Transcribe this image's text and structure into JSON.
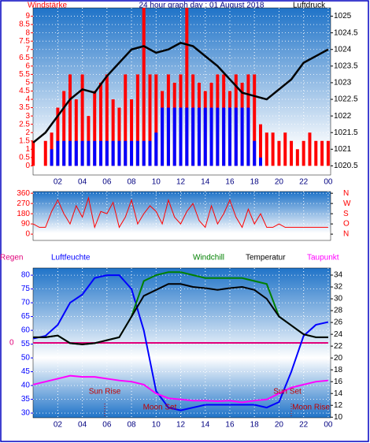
{
  "chart_data": [
    {
      "type": "wind",
      "title": "24 hour graph day : 01 August 2018",
      "ylabel": "Windstärke",
      "y2label": "Luftdruck",
      "x": [
        0,
        0.5,
        1,
        1.5,
        2,
        2.5,
        3,
        3.5,
        4,
        4.5,
        5,
        5.5,
        6,
        6.5,
        7,
        7.5,
        8,
        8.5,
        9,
        9.5,
        10,
        10.5,
        11,
        11.5,
        12,
        12.5,
        13,
        13.5,
        14,
        14.5,
        15,
        15.5,
        16,
        16.5,
        17,
        17.5,
        18,
        18.5,
        19,
        19.5,
        20,
        20.5,
        21,
        21.5,
        22,
        22.5,
        23,
        23.5,
        24
      ],
      "xlim": [
        -2.7,
        24.2
      ],
      "xticks": [
        {
          "value": 2,
          "label": "02"
        },
        {
          "value": 4,
          "label": "04"
        },
        {
          "value": 6,
          "label": "06"
        },
        {
          "value": 8,
          "label": "08"
        },
        10,
        12,
        14,
        16,
        18,
        20,
        22,
        {
          "value": 24,
          "label": "00"
        }
      ],
      "ylim": [
        -0.55,
        9.5
      ],
      "yticks": [
        0,
        0.5,
        1,
        1.5,
        2,
        2.5,
        3,
        3.5,
        4,
        4.5,
        5,
        5.5,
        6,
        6.5,
        7,
        7.5,
        8,
        8.5,
        9
      ],
      "y2lim": [
        1020.225,
        1025.25
      ],
      "y2ticks": [
        1020.5,
        1021,
        1021.5,
        1022,
        1022.5,
        1023,
        1023.5,
        1024,
        1024.5,
        1025
      ],
      "series": [
        {
          "name": "gust",
          "color": "#ff0000",
          "values": [
            1.5,
            0,
            1.5,
            2,
            3.5,
            4.5,
            5.5,
            4,
            5.5,
            3,
            4.5,
            5,
            5.5,
            4,
            3.5,
            5.5,
            4,
            5.5,
            9.5,
            5.5,
            5.5,
            4.5,
            5.5,
            5,
            5.5,
            9.5,
            5.5,
            5,
            4.5,
            5,
            5.5,
            5.5,
            4.5,
            5.5,
            5,
            5.5,
            5.5,
            2.5,
            2,
            2,
            1.5,
            2,
            1.5,
            1,
            1.5,
            2,
            1.5,
            1.5,
            1.5
          ]
        },
        {
          "name": "wind",
          "color": "#0000ff",
          "values": [
            0,
            0,
            0,
            1,
            1.5,
            1.5,
            1.5,
            1.5,
            1.5,
            1.5,
            1.5,
            1.5,
            1.5,
            1.5,
            1.5,
            1.5,
            1.5,
            1.5,
            1.5,
            1.5,
            2,
            3.5,
            3.5,
            3.5,
            3.5,
            3.5,
            3.5,
            3.5,
            3.5,
            3.5,
            3.5,
            3.5,
            3.5,
            3.5,
            3.5,
            3.5,
            1.5,
            0.5,
            0,
            0,
            0,
            0,
            0,
            0,
            0,
            0,
            0,
            0,
            0
          ]
        },
        {
          "name": "pressure",
          "color": "#000000",
          "axis": "y2",
          "values": [
            1021.2,
            1021.35,
            1021.5,
            1021.75,
            1022.0,
            1022.25,
            1022.5,
            1022.65,
            1022.8,
            1022.75,
            1022.7,
            1022.95,
            1023.2,
            1023.4,
            1023.6,
            1023.8,
            1024.0,
            1024.05,
            1024.1,
            1024.0,
            1023.9,
            1023.95,
            1024.0,
            1024.1,
            1024.2,
            1024.15,
            1024.1,
            1023.95,
            1023.8,
            1023.65,
            1023.5,
            1023.3,
            1023.1,
            1022.9,
            1022.7,
            1022.65,
            1022.6,
            1022.55,
            1022.5,
            1022.65,
            1022.8,
            1022.95,
            1023.1,
            1023.35,
            1023.6,
            1023.7,
            1023.8,
            1023.9,
            1024.0
          ]
        }
      ]
    },
    {
      "type": "direction",
      "x": [
        0,
        0.5,
        1,
        1.5,
        2,
        2.5,
        3,
        3.5,
        4,
        4.5,
        5,
        5.5,
        6,
        6.5,
        7,
        7.5,
        8,
        8.5,
        9,
        9.5,
        10,
        10.5,
        11,
        11.5,
        12,
        12.5,
        13,
        13.5,
        14,
        14.5,
        15,
        15.5,
        16,
        16.5,
        17,
        17.5,
        18,
        18.5,
        19,
        19.5,
        20,
        20.5,
        21,
        21.5,
        22,
        22.5,
        23,
        23.5,
        24
      ],
      "xlim": [
        -2.7,
        24.2
      ],
      "ylim": [
        -55,
        375
      ],
      "yticks": [
        0,
        90,
        180,
        270,
        360
      ],
      "y2ticks": [
        {
          "value": 360,
          "label": "N"
        },
        {
          "value": 270,
          "label": "W"
        },
        {
          "value": 180,
          "label": "S"
        },
        {
          "value": 90,
          "label": "O"
        },
        {
          "value": 0,
          "label": "N"
        }
      ],
      "series": [
        {
          "name": "direction",
          "color": "#ff0000",
          "values": [
            90,
            60,
            60,
            200,
            300,
            180,
            90,
            250,
            150,
            320,
            60,
            200,
            180,
            280,
            60,
            150,
            300,
            90,
            180,
            250,
            200,
            90,
            300,
            150,
            90,
            200,
            270,
            120,
            60,
            250,
            90,
            180,
            300,
            150,
            60,
            220,
            90,
            180,
            60,
            60,
            90,
            60,
            60,
            60,
            60,
            60,
            60,
            60,
            60
          ]
        }
      ]
    },
    {
      "type": "line",
      "x": [
        0,
        1,
        2,
        3,
        4,
        5,
        6,
        7,
        8,
        9,
        10,
        11,
        12,
        13,
        14,
        15,
        16,
        17,
        18,
        19,
        20,
        21,
        22,
        23,
        24
      ],
      "xlim": [
        -2.7,
        24.2
      ],
      "xticks": [
        {
          "value": 2,
          "label": "02"
        },
        {
          "value": 4,
          "label": "04"
        },
        {
          "value": 6,
          "label": "06"
        },
        {
          "value": 8,
          "label": "08"
        },
        10,
        12,
        14,
        16,
        18,
        20,
        22,
        {
          "value": 24,
          "label": "00"
        }
      ],
      "ylim": [
        28.3,
        82.6
      ],
      "yticks": [
        30,
        35,
        40,
        45,
        50,
        55,
        60,
        65,
        70,
        75,
        80
      ],
      "y2lim": [
        9.9,
        35.2
      ],
      "y2ticks": [
        10,
        12,
        14,
        16,
        18,
        20,
        22,
        24,
        26,
        28,
        30,
        32,
        34
      ],
      "y3lim": [
        -1,
        1
      ],
      "y3ticks": [
        0
      ],
      "annotations": [
        "Sun Rise",
        "Moon Set",
        "Sun Set",
        "Moon Rise"
      ],
      "series": [
        {
          "name": "Regen",
          "color": "#e0007a",
          "axis": "y3",
          "values": [
            0,
            0,
            0,
            0,
            0,
            0,
            0,
            0,
            0,
            0,
            0,
            0,
            0,
            0,
            0,
            0,
            0,
            0,
            0,
            0,
            0,
            0,
            0,
            0,
            0
          ]
        },
        {
          "name": "Luftfeuchte",
          "color": "#0000ff",
          "values": [
            57,
            58,
            62,
            70,
            73,
            79,
            80,
            80,
            75,
            60,
            38,
            32,
            31,
            32,
            33,
            33,
            33,
            33,
            33,
            32,
            34,
            45,
            58,
            62,
            63
          ]
        },
        {
          "name": "Windchill",
          "color": "#008000",
          "axis": "y2",
          "values": [
            23.5,
            23.5,
            23.8,
            22.5,
            22.3,
            22.5,
            23.0,
            23.5,
            27.0,
            33.0,
            34.0,
            34.5,
            34.5,
            34.0,
            33.5,
            33.5,
            33.5,
            33.5,
            33.0,
            32.5,
            27.0,
            25.5,
            24.0,
            23.5,
            23.5
          ]
        },
        {
          "name": "Temperatur",
          "color": "#000000",
          "axis": "y2",
          "values": [
            23.5,
            23.5,
            23.8,
            22.5,
            22.3,
            22.5,
            23.0,
            23.5,
            27.0,
            30.5,
            31.5,
            32.5,
            32.5,
            32.0,
            31.8,
            31.5,
            31.8,
            32.0,
            31.5,
            30.0,
            27.0,
            25.5,
            24.0,
            23.5,
            23.5
          ]
        },
        {
          "name": "Taupunkt",
          "color": "#ff00ff",
          "axis": "y2",
          "values": [
            15.5,
            16.0,
            16.5,
            17.0,
            16.8,
            16.8,
            16.5,
            16.2,
            16.0,
            15.5,
            14.0,
            13.2,
            13.0,
            12.8,
            12.8,
            12.7,
            12.8,
            12.5,
            12.8,
            13.0,
            14.0,
            15.0,
            15.5,
            16.0,
            16.2
          ]
        }
      ]
    }
  ]
}
